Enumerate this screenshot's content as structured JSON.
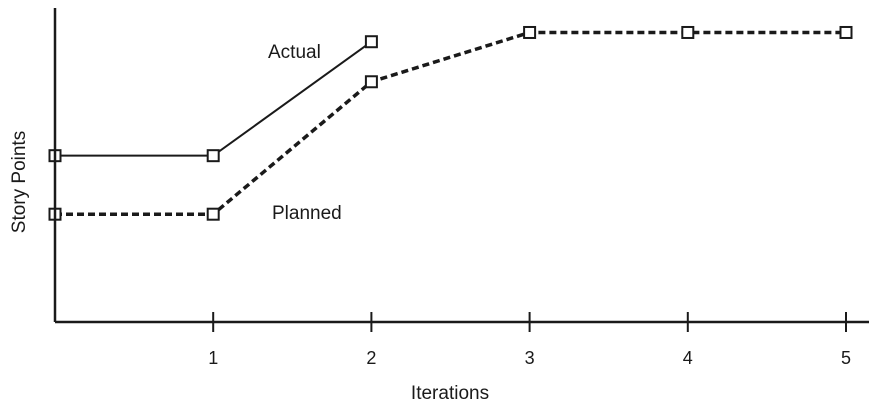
{
  "chart_data": {
    "type": "line",
    "xlabel": "Iterations",
    "ylabel": "Story Points",
    "x_ticks": [
      "1",
      "2",
      "3",
      "4",
      "5"
    ],
    "xlim": [
      0,
      5
    ],
    "ylim": [
      0,
      100
    ],
    "y_ticks_shown": false,
    "grid": false,
    "legend": "inline labels",
    "series": [
      {
        "name": "Actual",
        "style": "solid",
        "color": "#1a1a1a",
        "x": [
          0,
          1,
          2
        ],
        "y": [
          54,
          54,
          91
        ]
      },
      {
        "name": "Planned",
        "style": "dashed",
        "color": "#1a1a1a",
        "x": [
          0,
          1,
          2,
          3,
          4,
          5
        ],
        "y": [
          35,
          35,
          78,
          94,
          94,
          94
        ]
      }
    ]
  }
}
